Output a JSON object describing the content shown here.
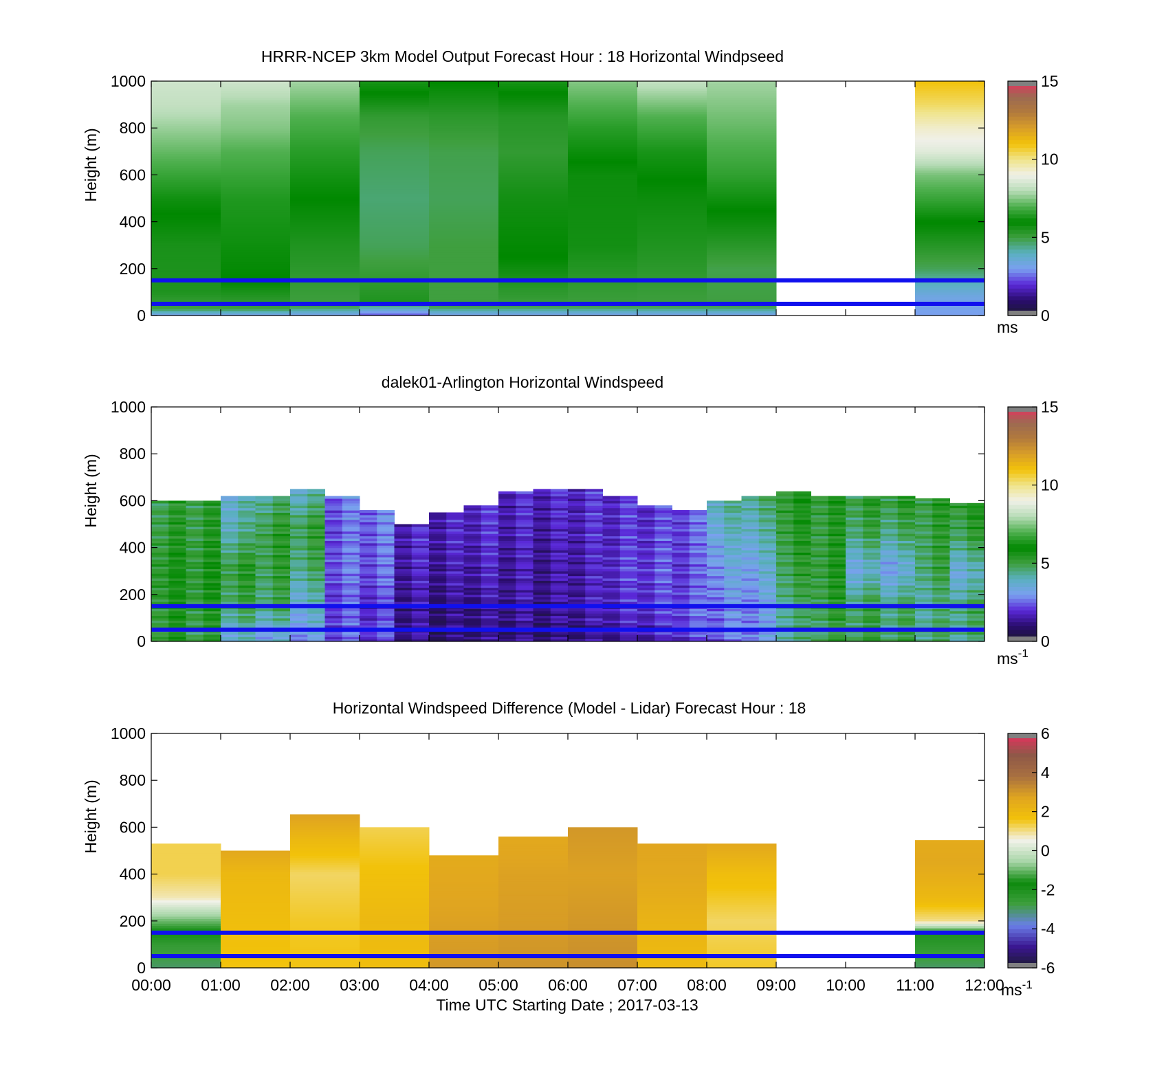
{
  "figure": {
    "xlabel": "Time UTC  Starting Date ; 2017-03-13",
    "x_ticks": [
      "00:00",
      "01:00",
      "02:00",
      "03:00",
      "04:00",
      "05:00",
      "06:00",
      "07:00",
      "08:00",
      "09:00",
      "10:00",
      "11:00",
      "12:00"
    ],
    "y_ticks": [
      "0",
      "200",
      "400",
      "600",
      "800",
      "1000"
    ]
  },
  "chart_data": [
    {
      "type": "heatmap",
      "title": "HRRR-NCEP 3km Model Output   Forecast Hour : 18 Horizontal Windpseed",
      "ylabel": "Height (m)",
      "xlim": [
        "00:00",
        "12:00"
      ],
      "ylim": [
        0,
        1000
      ],
      "colorbar": {
        "min": 0,
        "max": 15,
        "ticks": [
          "0",
          "5",
          "10",
          "15"
        ],
        "unit": "ms",
        "unit_sup": ""
      },
      "reference_lines_m": [
        50,
        150
      ],
      "grid": false,
      "columns": [
        {
          "time": "00:00",
          "profile": [
            [
              0,
              3
            ],
            [
              30,
              5
            ],
            [
              100,
              5.5
            ],
            [
              300,
              5.6
            ],
            [
              500,
              6.2
            ],
            [
              700,
              7.2
            ],
            [
              900,
              8.2
            ],
            [
              1000,
              8.4
            ]
          ]
        },
        {
          "time": "01:00",
          "profile": [
            [
              0,
              3
            ],
            [
              30,
              5
            ],
            [
              150,
              6
            ],
            [
              500,
              6.4
            ],
            [
              700,
              7
            ],
            [
              800,
              7.5
            ],
            [
              900,
              7.8
            ],
            [
              1000,
              8.4
            ]
          ]
        },
        {
          "time": "02:00",
          "profile": [
            [
              0,
              3
            ],
            [
              40,
              5
            ],
            [
              300,
              5.5
            ],
            [
              500,
              6
            ],
            [
              700,
              6.5
            ],
            [
              850,
              7
            ],
            [
              1000,
              7.8
            ]
          ]
        },
        {
          "time": "03:00",
          "profile": [
            [
              0,
              2.2
            ],
            [
              60,
              5.5
            ],
            [
              300,
              4.8
            ],
            [
              500,
              4.6
            ],
            [
              700,
              4.8
            ],
            [
              850,
              5.2
            ],
            [
              950,
              6
            ],
            [
              1000,
              6.3
            ]
          ]
        },
        {
          "time": "04:00",
          "profile": [
            [
              0,
              3
            ],
            [
              40,
              5
            ],
            [
              300,
              5
            ],
            [
              500,
              4.8
            ],
            [
              700,
              4.9
            ],
            [
              850,
              5.3
            ],
            [
              1000,
              6
            ]
          ]
        },
        {
          "time": "05:00",
          "profile": [
            [
              0,
              3
            ],
            [
              40,
              5
            ],
            [
              250,
              6
            ],
            [
              500,
              5.7
            ],
            [
              700,
              5.2
            ],
            [
              850,
              5.4
            ],
            [
              1000,
              6.3
            ]
          ]
        },
        {
          "time": "06:00",
          "profile": [
            [
              0,
              3
            ],
            [
              40,
              5
            ],
            [
              300,
              5.7
            ],
            [
              600,
              5.8
            ],
            [
              800,
              6.5
            ],
            [
              900,
              7
            ],
            [
              1000,
              7.5
            ]
          ]
        },
        {
          "time": "07:00",
          "profile": [
            [
              0,
              3
            ],
            [
              40,
              5
            ],
            [
              300,
              5.5
            ],
            [
              500,
              5.8
            ],
            [
              700,
              6.3
            ],
            [
              850,
              7
            ],
            [
              1000,
              8.2
            ]
          ]
        },
        {
          "time": "08:00",
          "profile": [
            [
              0,
              3
            ],
            [
              40,
              5
            ],
            [
              200,
              4.9
            ],
            [
              400,
              5.8
            ],
            [
              600,
              6.6
            ],
            [
              800,
              7.2
            ],
            [
              1000,
              7.8
            ]
          ]
        },
        {
          "time": "11:00",
          "profile": [
            [
              0,
              3
            ],
            [
              80,
              3.3
            ],
            [
              200,
              4.8
            ],
            [
              400,
              6
            ],
            [
              600,
              7.4
            ],
            [
              700,
              8.7
            ],
            [
              800,
              9.3
            ],
            [
              900,
              10.3
            ],
            [
              1000,
              11
            ]
          ]
        }
      ],
      "missing": [
        "09:00",
        "10:00"
      ]
    },
    {
      "type": "heatmap",
      "title": "dalek01-Arlington  Horizontal Windspeed",
      "ylabel": "Height (m)",
      "xlim": [
        "00:00",
        "12:00"
      ],
      "ylim": [
        0,
        1000
      ],
      "colorbar": {
        "min": 0,
        "max": 15,
        "ticks": [
          "0",
          "5",
          "10",
          "15"
        ],
        "unit": "ms",
        "unit_sup": "-1"
      },
      "reference_lines_m": [
        50,
        150
      ],
      "grid": false,
      "bin_minutes": 15,
      "profiles": [
        {
          "time": "00:00",
          "top_m": 600,
          "speeds": [
            5.2,
            5.4,
            5.5,
            5.2,
            5.0
          ]
        },
        {
          "time": "00:30",
          "top_m": 600,
          "speeds": [
            5.0,
            5.3,
            5.4,
            5.2,
            5.1
          ]
        },
        {
          "time": "01:00",
          "top_m": 620,
          "speeds": [
            3.6,
            4.8,
            5.2,
            4.2,
            3.8
          ]
        },
        {
          "time": "01:30",
          "top_m": 620,
          "speeds": [
            3.2,
            4.6,
            5.0,
            5.1,
            4.4
          ]
        },
        {
          "time": "02:00",
          "top_m": 650,
          "speeds": [
            3.0,
            3.7,
            4.6,
            5.0,
            3.8
          ]
        },
        {
          "time": "02:30",
          "top_m": 620,
          "speeds": [
            2.4,
            2.2,
            2.5,
            2.4,
            2.6
          ]
        },
        {
          "time": "03:00",
          "top_m": 560,
          "speeds": [
            2.2,
            2.0,
            2.4,
            2.5,
            2.7
          ]
        },
        {
          "time": "03:30",
          "top_m": 500,
          "speeds": [
            1.2,
            1.3,
            1.5,
            1.7,
            1.8
          ]
        },
        {
          "time": "04:00",
          "top_m": 550,
          "speeds": [
            0.8,
            1.1,
            1.4,
            1.6,
            1.7
          ]
        },
        {
          "time": "04:30",
          "top_m": 580,
          "speeds": [
            1.0,
            1.3,
            1.6,
            1.8,
            1.9
          ]
        },
        {
          "time": "05:00",
          "top_m": 640,
          "speeds": [
            1.1,
            1.4,
            1.5,
            1.7,
            1.8
          ]
        },
        {
          "time": "05:30",
          "top_m": 650,
          "speeds": [
            1.0,
            1.3,
            1.4,
            1.6,
            1.8
          ]
        },
        {
          "time": "06:00",
          "top_m": 650,
          "speeds": [
            1.2,
            1.5,
            1.6,
            1.8,
            1.9
          ]
        },
        {
          "time": "06:30",
          "top_m": 620,
          "speeds": [
            1.4,
            1.8,
            2.0,
            1.9,
            2.0
          ]
        },
        {
          "time": "07:00",
          "top_m": 580,
          "speeds": [
            1.6,
            2.0,
            2.2,
            2.1,
            2.0
          ]
        },
        {
          "time": "07:30",
          "top_m": 560,
          "speeds": [
            2.0,
            2.4,
            2.2,
            2.3,
            2.4
          ]
        },
        {
          "time": "08:00",
          "top_m": 600,
          "speeds": [
            2.4,
            2.8,
            3.1,
            3.6,
            4.2
          ]
        },
        {
          "time": "08:30",
          "top_m": 620,
          "speeds": [
            2.8,
            3.0,
            3.4,
            3.9,
            4.5
          ]
        },
        {
          "time": "09:00",
          "top_m": 640,
          "speeds": [
            4.2,
            4.6,
            5.0,
            5.3,
            5.4
          ]
        },
        {
          "time": "09:30",
          "top_m": 620,
          "speeds": [
            4.8,
            5.1,
            5.3,
            5.2,
            5.3
          ]
        },
        {
          "time": "10:00",
          "top_m": 620,
          "speeds": [
            5.0,
            4.8,
            3.5,
            4.8,
            5.2
          ]
        },
        {
          "time": "10:30",
          "top_m": 620,
          "speeds": [
            4.9,
            4.5,
            3.3,
            4.6,
            5.3
          ]
        },
        {
          "time": "11:00",
          "top_m": 610,
          "speeds": [
            4.7,
            4.2,
            4.8,
            5.0,
            5.2
          ]
        },
        {
          "time": "11:30",
          "top_m": 590,
          "speeds": [
            4.4,
            4.6,
            3.6,
            4.9,
            5.4
          ]
        }
      ]
    },
    {
      "type": "heatmap",
      "title": "Horizontal Windspeed Difference (Model - Lidar) Forecast Hour : 18",
      "ylabel": "Height (m)",
      "xlim": [
        "00:00",
        "12:00"
      ],
      "ylim": [
        0,
        1000
      ],
      "colorbar": {
        "min": -6,
        "max": 6,
        "ticks": [
          "-6",
          "-4",
          "-2",
          "0",
          "2",
          "4",
          "6"
        ],
        "unit": "ms",
        "unit_sup": "-1"
      },
      "reference_lines_m": [
        50,
        150
      ],
      "grid": false,
      "columns": [
        {
          "time": "00:00",
          "top_m": 530,
          "profile": [
            [
              0,
              -3
            ],
            [
              100,
              -2.5
            ],
            [
              200,
              -1
            ],
            [
              300,
              0.8
            ],
            [
              400,
              1.3
            ],
            [
              530,
              1.3
            ]
          ]
        },
        {
          "time": "01:00",
          "top_m": 500,
          "profile": [
            [
              0,
              1.6
            ],
            [
              200,
              1.8
            ],
            [
              400,
              2
            ],
            [
              500,
              2.6
            ]
          ]
        },
        {
          "time": "02:00",
          "top_m": 655,
          "profile": [
            [
              0,
              1.6
            ],
            [
              200,
              1.5
            ],
            [
              400,
              1.2
            ],
            [
              550,
              2
            ],
            [
              655,
              2.8
            ]
          ]
        },
        {
          "time": "03:00",
          "top_m": 600,
          "profile": [
            [
              0,
              1.8
            ],
            [
              200,
              2
            ],
            [
              400,
              1.7
            ],
            [
              550,
              1.4
            ],
            [
              600,
              1.3
            ]
          ]
        },
        {
          "time": "04:00",
          "top_m": 480,
          "profile": [
            [
              0,
              3
            ],
            [
              200,
              2.8
            ],
            [
              400,
              2.6
            ],
            [
              480,
              2.5
            ]
          ]
        },
        {
          "time": "05:00",
          "top_m": 560,
          "profile": [
            [
              0,
              3.1
            ],
            [
              200,
              2.9
            ],
            [
              400,
              2.8
            ],
            [
              560,
              2.6
            ]
          ]
        },
        {
          "time": "06:00",
          "top_m": 600,
          "profile": [
            [
              0,
              3.2
            ],
            [
              200,
              3
            ],
            [
              400,
              2.8
            ],
            [
              600,
              3
            ]
          ]
        },
        {
          "time": "07:00",
          "top_m": 530,
          "profile": [
            [
              0,
              1.9
            ],
            [
              200,
              2.2
            ],
            [
              400,
              2.6
            ],
            [
              530,
              2.7
            ]
          ]
        },
        {
          "time": "08:00",
          "top_m": 530,
          "profile": [
            [
              0,
              1.5
            ],
            [
              200,
              1.2
            ],
            [
              400,
              1.8
            ],
            [
              530,
              2.6
            ]
          ]
        },
        {
          "time": "11:00",
          "top_m": 545,
          "profile": [
            [
              0,
              -3
            ],
            [
              150,
              -2
            ],
            [
              200,
              1
            ],
            [
              300,
              2
            ],
            [
              450,
              2.6
            ],
            [
              545,
              2.5
            ]
          ]
        }
      ],
      "missing": [
        "09:00",
        "10:00"
      ]
    }
  ],
  "colors": {
    "reference_line": "#1010ee",
    "speed_scale": [
      "#1b1b2e",
      "#2a0c6e",
      "#5a28d8",
      "#7aa0f0",
      "#5ab0c0",
      "#3f9f3f",
      "#008800",
      "#4fb04f",
      "#b8dcb8",
      "#f0f0e8",
      "#f0e48a",
      "#f2c20a",
      "#d99e28",
      "#b27a3c",
      "#9c6a52",
      "#e83060"
    ],
    "diff_scale": [
      "#1b1b2e",
      "#3a1690",
      "#6a7ee8",
      "#3e9f3e",
      "#0d8a0d",
      "#a8d6a8",
      "#f2f2ea",
      "#f2c20a",
      "#e0a520",
      "#a87040",
      "#8f5848",
      "#e83060"
    ]
  }
}
